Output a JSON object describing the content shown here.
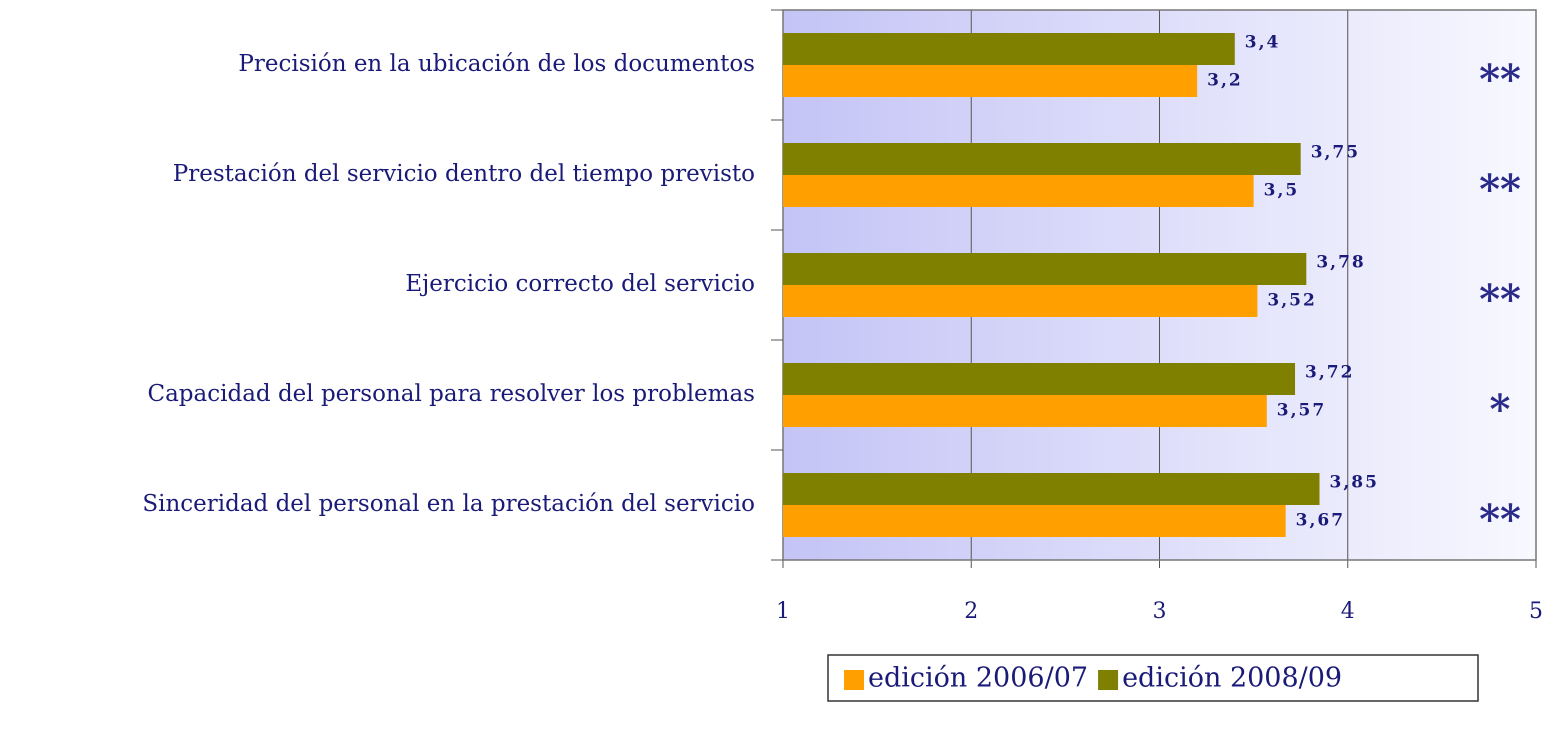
{
  "chart_data": {
    "type": "bar",
    "orientation": "horizontal",
    "categories": [
      "Precisión en la ubicación de los documentos",
      "Prestación del servicio dentro del tiempo previsto",
      "Ejercicio correcto del servicio",
      "Capacidad del personal para resolver los problemas",
      "Sinceridad del personal en la prestación del servicio"
    ],
    "series": [
      {
        "name": "edición 2006/07",
        "color": "#ffa000",
        "values": [
          3.2,
          3.5,
          3.52,
          3.57,
          3.67
        ],
        "value_labels": [
          "3,2",
          "3,5",
          "3,52",
          "3,57",
          "3,67"
        ]
      },
      {
        "name": "edición 2008/09",
        "color": "#808000",
        "values": [
          3.4,
          3.75,
          3.78,
          3.72,
          3.85
        ],
        "value_labels": [
          "3,4",
          "3,75",
          "3,78",
          "3,72",
          "3,85"
        ]
      }
    ],
    "annotations": [
      "**",
      "**",
      "**",
      "*",
      "**"
    ],
    "xlim": [
      1,
      5
    ],
    "xticks": [
      1,
      2,
      3,
      4,
      5
    ],
    "grid": true,
    "legend": "bottom"
  }
}
